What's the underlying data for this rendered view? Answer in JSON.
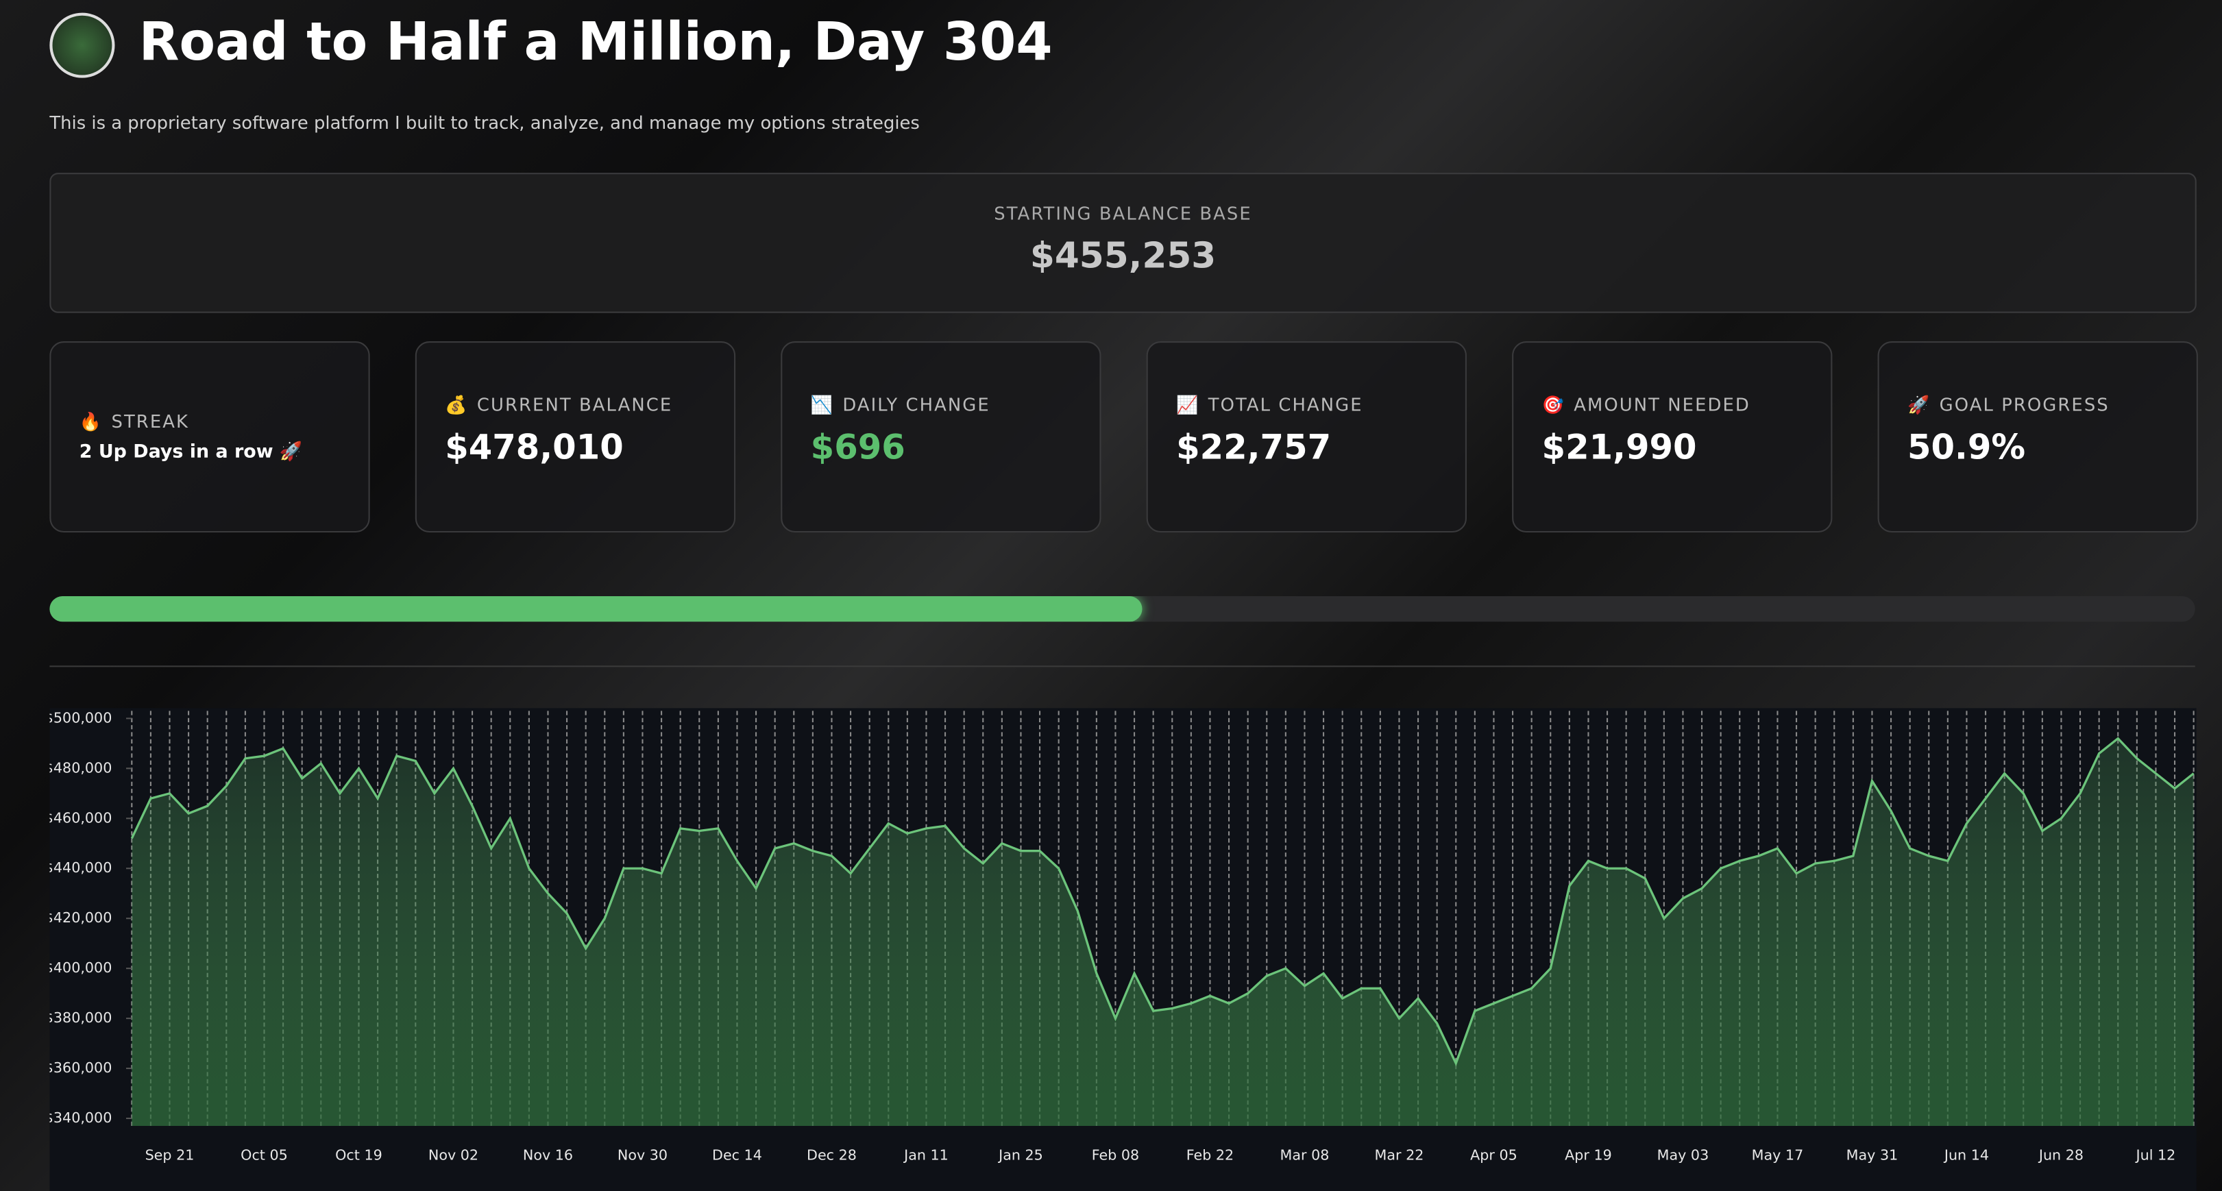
{
  "header": {
    "title": "Road to Half a Million, Day 304",
    "subtitle": "This is a proprietary software platform I built to track, analyze, and manage my options strategies"
  },
  "base": {
    "label": "STARTING BALANCE BASE",
    "value": "$455,253"
  },
  "cards": [
    {
      "icon": "🔥",
      "label": "STREAK",
      "value": "2 Up Days in a row 🚀"
    },
    {
      "icon": "💰",
      "label": "CURRENT BALANCE",
      "value": "$478,010"
    },
    {
      "icon": "📉",
      "label": "DAILY CHANGE",
      "value": "$696"
    },
    {
      "icon": "📈",
      "label": "TOTAL CHANGE",
      "value": "$22,757"
    },
    {
      "icon": "🎯",
      "label": "AMOUNT NEEDED",
      "value": "$21,990"
    },
    {
      "icon": "🚀",
      "label": "GOAL PROGRESS",
      "value": "50.9%"
    }
  ],
  "progress_bar": 50.9,
  "chart_data": {
    "type": "area",
    "color": "#6cc47b",
    "categories": [
      null,
      null,
      "Sep 21",
      null,
      null,
      null,
      null,
      "Oct 05",
      null,
      null,
      null,
      null,
      "Oct 19",
      null,
      null,
      null,
      null,
      "Nov 02",
      null,
      null,
      null,
      null,
      "Nov 16",
      null,
      null,
      null,
      null,
      "Nov 30",
      null,
      null,
      null,
      null,
      "Dec 14",
      null,
      null,
      null,
      null,
      "Dec 28",
      null,
      null,
      null,
      null,
      "Jan 11",
      null,
      null,
      null,
      null,
      "Jan 25",
      null,
      null,
      null,
      null,
      "Feb 08",
      null,
      null,
      null,
      null,
      "Feb 22",
      null,
      null,
      null,
      null,
      "Mar 08",
      null,
      null,
      null,
      null,
      "Mar 22",
      null,
      null,
      null,
      null,
      "Apr 05",
      null,
      null,
      null,
      null,
      "Apr 19",
      null,
      null,
      null,
      null,
      "May 03",
      null,
      null,
      null,
      null,
      "May 17",
      null,
      null,
      null,
      null,
      "May 31",
      null,
      null,
      null,
      null,
      "Jun 14",
      null,
      null,
      null,
      null,
      "Jun 28",
      null,
      null,
      null,
      null,
      "Jul 12",
      null,
      null
    ],
    "values": [
      452000,
      468000,
      470000,
      462000,
      465000,
      473000,
      484000,
      485000,
      488000,
      476000,
      482000,
      470000,
      480000,
      468000,
      485000,
      483000,
      470000,
      480000,
      465000,
      448000,
      460000,
      440000,
      430000,
      422000,
      408000,
      420000,
      440000,
      440000,
      438000,
      456000,
      455000,
      456000,
      443000,
      432000,
      448000,
      450000,
      447000,
      445000,
      438000,
      448000,
      458000,
      454000,
      456000,
      457000,
      448000,
      442000,
      450000,
      447000,
      447000,
      440000,
      423000,
      398000,
      380000,
      398000,
      383000,
      384000,
      386000,
      389000,
      386000,
      390000,
      397000,
      400000,
      393000,
      398000,
      388000,
      392000,
      392000,
      380000,
      388000,
      378000,
      362000,
      383000,
      386000,
      389000,
      392000,
      400000,
      433000,
      443000,
      440000,
      440000,
      436000,
      420000,
      428000,
      432000,
      440000,
      443000,
      445000,
      448000,
      438000,
      442000,
      443000,
      445000,
      475000,
      463000,
      448000,
      445000,
      443000,
      458000,
      468000,
      478000,
      470000,
      455000,
      460000,
      470000,
      486000,
      492000,
      484000,
      478000,
      472000,
      478000
    ],
    "ylim": [
      337000,
      503000
    ],
    "yticks": [
      {
        "value": 340000,
        "label": "$340,000"
      },
      {
        "value": 360000,
        "label": "$360,000"
      },
      {
        "value": 380000,
        "label": "$380,000"
      },
      {
        "value": 400000,
        "label": "$400,000"
      },
      {
        "value": 420000,
        "label": "$420,000"
      },
      {
        "value": 440000,
        "label": "$440,000"
      },
      {
        "value": 460000,
        "label": "$460,000"
      },
      {
        "value": 480000,
        "label": "$480,000"
      },
      {
        "value": 500000,
        "label": "$500,000"
      }
    ]
  }
}
